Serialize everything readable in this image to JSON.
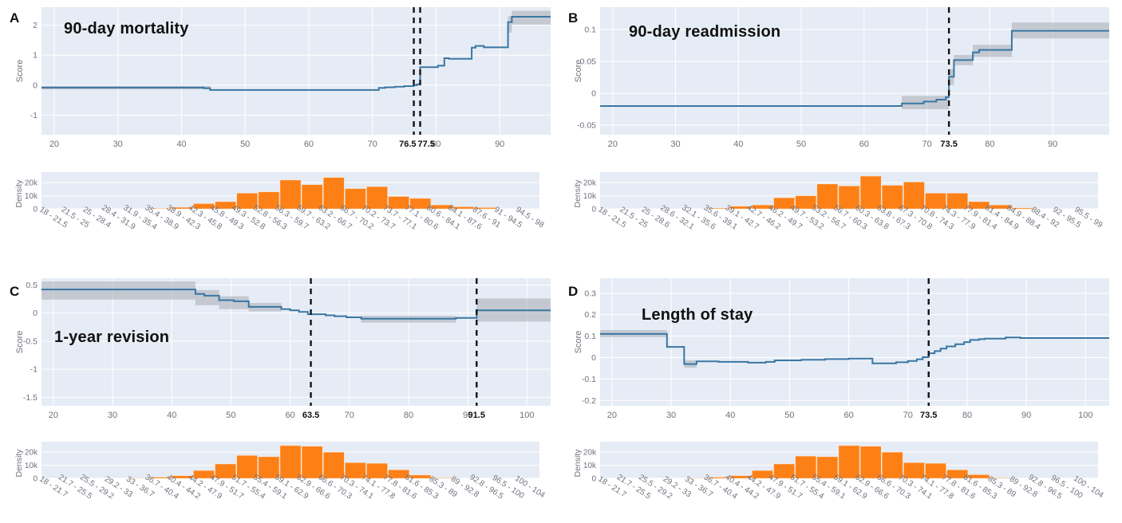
{
  "colors": {
    "plot_bg": "#e6ecf5",
    "grid": "#ffffff",
    "line": "#3a76a3",
    "band": "#9fa4ad",
    "bar": "#fd8017",
    "bar_edge": "#fde3c8",
    "tick": "#6f717e",
    "threshold": "#141414"
  },
  "chart_data": [
    {
      "panel": "A",
      "type": "line",
      "title": "90-day mortality",
      "ylabel": "Score",
      "xlim": [
        18,
        98
      ],
      "ylim": [
        -1.65,
        2.6
      ],
      "xticks": [
        20,
        30,
        40,
        50,
        60,
        70,
        80,
        90
      ],
      "yticks": [
        -1,
        0,
        1,
        2
      ],
      "thresholds": [
        76.5,
        77.5
      ],
      "line": [
        [
          18,
          -0.08
        ],
        [
          43.5,
          -0.08
        ],
        [
          43.5,
          -0.1
        ],
        [
          44.5,
          -0.1
        ],
        [
          44.5,
          -0.16
        ],
        [
          71,
          -0.16
        ],
        [
          71,
          -0.09
        ],
        [
          72,
          -0.09
        ],
        [
          72,
          -0.07
        ],
        [
          73.5,
          -0.07
        ],
        [
          73.5,
          -0.05
        ],
        [
          75,
          -0.05
        ],
        [
          75,
          -0.03
        ],
        [
          76.5,
          -0.03
        ],
        [
          76.5,
          0.0
        ],
        [
          77,
          0.0
        ],
        [
          77,
          0.03
        ],
        [
          77.5,
          0.03
        ],
        [
          77.5,
          0.6
        ],
        [
          80.3,
          0.6
        ],
        [
          80.3,
          0.65
        ],
        [
          81.3,
          0.65
        ],
        [
          81.3,
          0.9
        ],
        [
          82,
          0.9
        ],
        [
          82,
          0.88
        ],
        [
          85.6,
          0.88
        ],
        [
          85.6,
          1.25
        ],
        [
          86.2,
          1.25
        ],
        [
          86.2,
          1.31
        ],
        [
          87.5,
          1.31
        ],
        [
          87.5,
          1.26
        ],
        [
          91.3,
          1.26
        ],
        [
          91.3,
          2.1
        ],
        [
          91.9,
          2.1
        ],
        [
          91.9,
          2.28
        ],
        [
          98,
          2.28
        ]
      ],
      "bands": [
        [
          18,
          44.5,
          -0.14,
          -0.02
        ],
        [
          91.3,
          91.9,
          1.75,
          2.3
        ],
        [
          91.9,
          98,
          2.02,
          2.48
        ]
      ]
    },
    {
      "panel": "A",
      "type": "bar",
      "ylabel": "Density",
      "ymax": 28,
      "ytick_vals": [
        0,
        10,
        20
      ],
      "ytick_labels": [
        "0",
        "10k",
        "20k"
      ],
      "categories": [
        "18 - 21.5",
        "21.5 - 25",
        "25 - 28.4",
        "28.4 - 31.9",
        "31.9 - 35.4",
        "35.4 - 38.9",
        "38.9 - 42.3",
        "42.3 - 45.8",
        "45.8 - 49.3",
        "49.3 - 52.8",
        "52.8 - 56.3",
        "56.3 - 59.7",
        "59.7 - 63.2",
        "63.2 - 66.7",
        "66.7 - 70.2",
        "70.2 - 73.7",
        "73.7 - 77.1",
        "77.1 - 80.6",
        "80.6 - 84.1",
        "84.1 - 87.6",
        "87.6 - 91",
        "91 - 94.5",
        "94.5 - 98"
      ],
      "values": [
        0.05,
        0.05,
        0.08,
        0.1,
        0.15,
        0.4,
        1.2,
        4,
        5.5,
        12,
        13,
        22,
        18.5,
        24,
        15.5,
        17,
        9.5,
        8,
        3,
        1.6,
        1,
        0.15,
        0.05
      ]
    },
    {
      "panel": "B",
      "type": "line",
      "title": "90-day readmission",
      "ylabel": "Score",
      "xlim": [
        18,
        99
      ],
      "ylim": [
        -0.065,
        0.135
      ],
      "xticks": [
        20,
        30,
        40,
        50,
        60,
        70,
        80,
        90
      ],
      "yticks": [
        -0.05,
        0,
        0.05,
        0.1
      ],
      "thresholds": [
        73.5
      ],
      "line": [
        [
          18,
          -0.02
        ],
        [
          66,
          -0.02
        ],
        [
          66,
          -0.016
        ],
        [
          69.5,
          -0.016
        ],
        [
          69.5,
          -0.013
        ],
        [
          71.5,
          -0.013
        ],
        [
          71.5,
          -0.01
        ],
        [
          73,
          -0.01
        ],
        [
          73,
          -0.006
        ],
        [
          73.5,
          -0.006
        ],
        [
          73.5,
          0.026
        ],
        [
          74.3,
          0.026
        ],
        [
          74.3,
          0.052
        ],
        [
          77.3,
          0.052
        ],
        [
          77.3,
          0.064
        ],
        [
          78.3,
          0.064
        ],
        [
          78.3,
          0.068
        ],
        [
          83.5,
          0.068
        ],
        [
          83.5,
          0.098
        ],
        [
          99,
          0.098
        ]
      ],
      "bands": [
        [
          66,
          73.5,
          -0.025,
          -0.004
        ],
        [
          73.5,
          74.3,
          0.013,
          0.038
        ],
        [
          74.3,
          77.3,
          0.044,
          0.06
        ],
        [
          77.3,
          83.5,
          0.057,
          0.076
        ],
        [
          83.5,
          99,
          0.086,
          0.111
        ]
      ]
    },
    {
      "panel": "B",
      "type": "bar",
      "ylabel": "Density",
      "ymax": 28,
      "ytick_vals": [
        0,
        10,
        20
      ],
      "ytick_labels": [
        "0",
        "10k",
        "20k"
      ],
      "categories": [
        "18 - 21.5",
        "21.5 - 25",
        "25 - 28.6",
        "28.6 - 32.1",
        "32.1 - 35.6",
        "35.6 - 39.1",
        "39.1 - 42.7",
        "42.7 - 46.2",
        "46.2 - 49.7",
        "49.7 - 53.2",
        "53.2 - 56.7",
        "56.7 - 60.3",
        "60.3 - 63.8",
        "63.8 - 67.3",
        "67.3 - 70.8",
        "70.8 - 74.3",
        "74.3 - 77.9",
        "77.9 - 81.4",
        "81.4 - 84.9",
        "84.9 - 88.4",
        "88.4 - 92",
        "92 - 95.5",
        "95.5 - 99"
      ],
      "values": [
        0.05,
        0.05,
        0.08,
        0.1,
        0.2,
        0.6,
        2,
        3,
        8.5,
        10,
        19,
        17.5,
        25,
        18,
        20.5,
        12,
        12,
        5.5,
        3,
        0.8,
        0.2,
        0.05,
        0.05
      ]
    },
    {
      "panel": "C",
      "type": "line",
      "title": "1-year revision",
      "ylabel": "Score",
      "xlim": [
        18,
        104
      ],
      "ylim": [
        -1.65,
        0.62
      ],
      "xticks": [
        20,
        30,
        40,
        50,
        60,
        70,
        80,
        90,
        100
      ],
      "yticks": [
        -1.5,
        -1,
        -0.5,
        0,
        0.5
      ],
      "thresholds": [
        63.5,
        91.5
      ],
      "line": [
        [
          18,
          0.42
        ],
        [
          44,
          0.42
        ],
        [
          44,
          0.34
        ],
        [
          45.5,
          0.34
        ],
        [
          45.5,
          0.31
        ],
        [
          48,
          0.31
        ],
        [
          48,
          0.23
        ],
        [
          50.5,
          0.23
        ],
        [
          50.5,
          0.21
        ],
        [
          53,
          0.21
        ],
        [
          53,
          0.11
        ],
        [
          58.5,
          0.11
        ],
        [
          58.5,
          0.07
        ],
        [
          60,
          0.07
        ],
        [
          60,
          0.05
        ],
        [
          61.5,
          0.05
        ],
        [
          61.5,
          0.02
        ],
        [
          63,
          0.02
        ],
        [
          63,
          -0.02
        ],
        [
          66,
          -0.02
        ],
        [
          66,
          -0.04
        ],
        [
          67.5,
          -0.04
        ],
        [
          67.5,
          -0.055
        ],
        [
          69.5,
          -0.055
        ],
        [
          69.5,
          -0.075
        ],
        [
          72,
          -0.075
        ],
        [
          72,
          -0.1
        ],
        [
          88,
          -0.1
        ],
        [
          88,
          -0.085
        ],
        [
          91.5,
          -0.085
        ],
        [
          91.5,
          0.05
        ],
        [
          104,
          0.05
        ]
      ],
      "bands": [
        [
          18,
          44,
          0.24,
          0.56
        ],
        [
          44,
          48,
          0.14,
          0.41
        ],
        [
          48,
          53,
          0.07,
          0.3
        ],
        [
          53,
          58.5,
          0.03,
          0.18
        ],
        [
          72,
          88,
          -0.17,
          -0.05
        ],
        [
          91.5,
          104,
          -0.15,
          0.26
        ]
      ]
    },
    {
      "panel": "C",
      "type": "bar",
      "ylabel": "Density",
      "ymax": 28,
      "ytick_vals": [
        0,
        10,
        20
      ],
      "ytick_labels": [
        "0",
        "10k",
        "20k"
      ],
      "categories": [
        "18 - 21.7",
        "21.7 - 25.5",
        "25.5 - 29.2",
        "29.2 - 33",
        "33 - 36.7",
        "36.7 - 40.4",
        "40.4 - 44.2",
        "44.2 - 47.9",
        "47.9 - 51.7",
        "51.7 - 55.4",
        "55.4 - 59.1",
        "59.1 - 62.9",
        "62.9 - 66.6",
        "66.6 - 70.3",
        "70.3 - 74.1",
        "74.1 - 77.8",
        "77.8 - 81.6",
        "81.6 - 85.3",
        "85.3 - 89",
        "89 - 92.8",
        "92.8 - 96.5",
        "96.5 - 100",
        "100 - 104"
      ],
      "values": [
        0.05,
        0.05,
        0.08,
        0.1,
        0.25,
        0.9,
        2,
        6,
        11,
        17.5,
        16.5,
        25,
        24.5,
        20,
        12,
        11.5,
        6.5,
        2.5,
        0.4,
        0.1,
        0.05,
        0.05,
        0.05
      ]
    },
    {
      "panel": "D",
      "type": "line",
      "title": "Length of stay",
      "ylabel": "Score",
      "xlim": [
        18,
        104
      ],
      "ylim": [
        -0.225,
        0.37
      ],
      "xticks": [
        20,
        30,
        40,
        50,
        60,
        70,
        80,
        90,
        100
      ],
      "yticks": [
        -0.2,
        -0.1,
        0,
        0.1,
        0.2,
        0.3
      ],
      "thresholds": [
        73.5
      ],
      "line": [
        [
          18,
          0.11
        ],
        [
          29.3,
          0.11
        ],
        [
          29.3,
          0.05
        ],
        [
          32.2,
          0.05
        ],
        [
          32.2,
          -0.03
        ],
        [
          34.3,
          -0.03
        ],
        [
          34.3,
          -0.018
        ],
        [
          38,
          -0.018
        ],
        [
          38,
          -0.02
        ],
        [
          43,
          -0.02
        ],
        [
          43,
          -0.024
        ],
        [
          46,
          -0.024
        ],
        [
          46,
          -0.02
        ],
        [
          47.5,
          -0.02
        ],
        [
          47.5,
          -0.013
        ],
        [
          52,
          -0.013
        ],
        [
          52,
          -0.01
        ],
        [
          56,
          -0.01
        ],
        [
          56,
          -0.007
        ],
        [
          60,
          -0.007
        ],
        [
          60,
          -0.005
        ],
        [
          64,
          -0.005
        ],
        [
          64,
          -0.027
        ],
        [
          68,
          -0.027
        ],
        [
          68,
          -0.022
        ],
        [
          70,
          -0.022
        ],
        [
          70,
          -0.016
        ],
        [
          71.5,
          -0.016
        ],
        [
          71.5,
          -0.008
        ],
        [
          72.5,
          -0.008
        ],
        [
          72.5,
          0.002
        ],
        [
          73.5,
          0.002
        ],
        [
          73.5,
          0.02
        ],
        [
          74.5,
          0.02
        ],
        [
          74.5,
          0.03
        ],
        [
          75.5,
          0.03
        ],
        [
          75.5,
          0.042
        ],
        [
          76.5,
          0.042
        ],
        [
          76.5,
          0.052
        ],
        [
          78,
          0.052
        ],
        [
          78,
          0.062
        ],
        [
          79.5,
          0.062
        ],
        [
          79.5,
          0.072
        ],
        [
          80.5,
          0.072
        ],
        [
          80.5,
          0.082
        ],
        [
          82,
          0.082
        ],
        [
          82,
          0.086
        ],
        [
          83,
          0.086
        ],
        [
          83,
          0.088
        ],
        [
          86.5,
          0.088
        ],
        [
          86.5,
          0.094
        ],
        [
          89,
          0.094
        ],
        [
          89,
          0.091
        ],
        [
          104,
          0.091
        ]
      ],
      "bands": [
        [
          18,
          29.3,
          0.095,
          0.128
        ],
        [
          32.2,
          34.3,
          -0.047,
          -0.013
        ]
      ]
    },
    {
      "panel": "D",
      "type": "bar",
      "ylabel": "Density",
      "ymax": 28,
      "ytick_vals": [
        0,
        10,
        20
      ],
      "ytick_labels": [
        "0",
        "10k",
        "20k"
      ],
      "categories": [
        "18 - 21.7",
        "21.7 - 25.5",
        "25.5 - 29.2",
        "29.2 - 33",
        "33 - 36.7",
        "36.7 - 40.4",
        "40.4 - 44.2",
        "44.2 - 47.9",
        "47.9 - 51.7",
        "51.7 - 55.4",
        "55.4 - 59.1",
        "59.1 - 62.9",
        "62.9 - 66.6",
        "66.6 - 70.3",
        "70.3 - 74.1",
        "74.1 - 77.8",
        "77.8 - 81.6",
        "81.6 - 85.3",
        "85.3 - 89",
        "89 - 92.8",
        "92.8 - 96.5",
        "96.5 - 100",
        "100 - 104"
      ],
      "values": [
        0.05,
        0.05,
        0.08,
        0.1,
        0.25,
        0.9,
        2,
        6,
        11,
        17,
        16.5,
        25,
        24.5,
        20,
        12,
        11.5,
        6.5,
        2.8,
        0.4,
        0.1,
        0.05,
        0.05,
        0.05
      ]
    }
  ]
}
